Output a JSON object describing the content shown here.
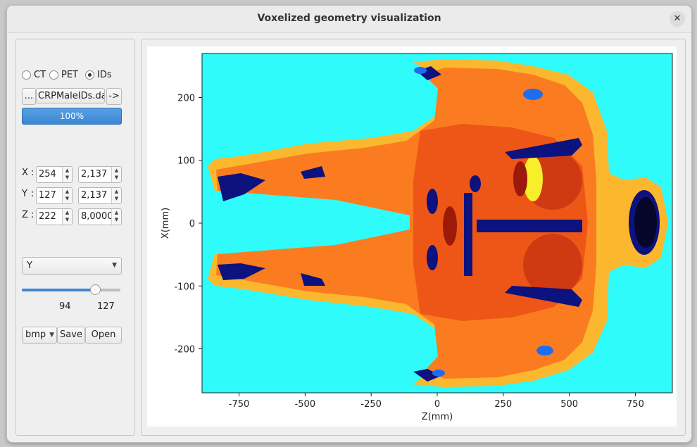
{
  "window": {
    "title": "Voxelized geometry visualization",
    "close_icon": "close-icon"
  },
  "modality": {
    "options": [
      {
        "label": "CT",
        "selected": false
      },
      {
        "label": "PET",
        "selected": false
      },
      {
        "label": "IDs",
        "selected": true
      }
    ]
  },
  "file": {
    "browse_label": "...",
    "filename": "CRPMaleIDs.dat",
    "go_label": "->"
  },
  "progress": {
    "value": 100,
    "label": "100%"
  },
  "coords": [
    {
      "axis": "X",
      "sep": ":",
      "index": "254",
      "size": "2,137"
    },
    {
      "axis": "Y",
      "sep": ":",
      "index": "127",
      "size": "2,137"
    },
    {
      "axis": "Z",
      "sep": ":",
      "index": "222",
      "size": "8,0000"
    }
  ],
  "plane_select": {
    "value": "Y"
  },
  "slider": {
    "value": 94,
    "max": 127,
    "value_label": "94",
    "max_label": "127"
  },
  "export": {
    "format": "bmp",
    "save_label": "Save",
    "open_label": "Open"
  },
  "plot": {
    "xlabel": "Z(mm)",
    "ylabel": "X(mm)",
    "xticks": [
      "-750",
      "-500",
      "-250",
      "0",
      "250",
      "500",
      "750"
    ],
    "yticks": [
      "200",
      "100",
      "0",
      "-100",
      "-200"
    ],
    "xlim": [
      -890,
      890
    ],
    "ylim": [
      -270,
      270
    ],
    "colors": {
      "background": "#30fbfb",
      "skin": "#fbb72e",
      "tissue": "#fb7c20",
      "inner": "#ee5617",
      "organ": "#d03a12",
      "dark_red": "#9c1a0a",
      "navy": "#0c127e",
      "blue": "#1e6df0",
      "yellow": "#f6ef2a"
    }
  }
}
